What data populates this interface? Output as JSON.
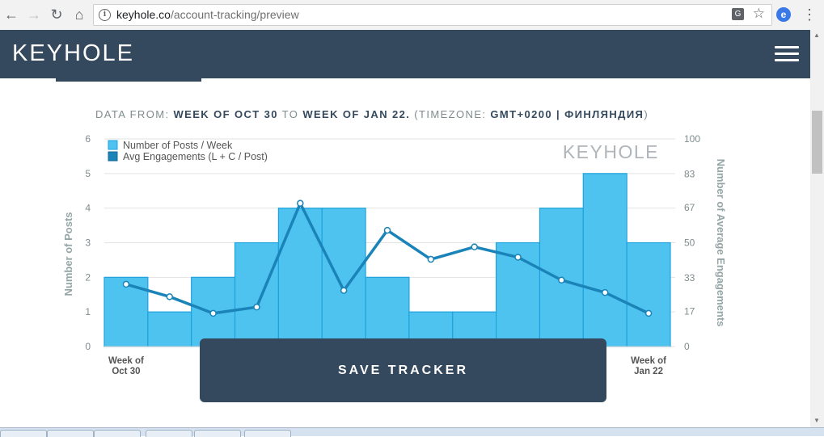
{
  "browser": {
    "url_host": "keyhole.co",
    "url_path": "/account-tracking/preview"
  },
  "header": {
    "logo_text": "KEYHOLE"
  },
  "data_range": {
    "label": "DATA FROM:",
    "from": "WEEK OF OCT 30",
    "to_word": "TO",
    "to": "WEEK OF JAN 22.",
    "tz_open": "(TIMEZONE:",
    "timezone": "GMT+0200 | ФИНЛЯНДИЯ",
    "tz_close": ")"
  },
  "chart_data": {
    "type": "bar",
    "watermark": "KEYHOLE",
    "categories": [
      "Week of Oct 30",
      "",
      "",
      "",
      "",
      "",
      "",
      "",
      "",
      "",
      "",
      "",
      "Week of Jan 22"
    ],
    "series": [
      {
        "name": "Number of Posts / Week",
        "type": "bar",
        "axis": "left",
        "color": "#4fc3f0",
        "values": [
          2,
          1,
          2,
          3,
          4,
          4,
          2,
          1,
          1,
          3,
          4,
          5,
          3
        ]
      },
      {
        "name": "Avg Engagements (L + C / Post)",
        "type": "line",
        "axis": "right",
        "color": "#1a84b8",
        "values": [
          30,
          24,
          16,
          19,
          69,
          27,
          56,
          42,
          48,
          43,
          32,
          26,
          16
        ]
      }
    ],
    "ylabel": "Number of Posts",
    "y2label": "Number of Average Engagements",
    "ylim": [
      0,
      6
    ],
    "yticks": [
      "0",
      "1",
      "2",
      "3",
      "4",
      "5",
      "6"
    ],
    "y2lim": [
      0,
      100
    ],
    "y2ticks": [
      "0",
      "17",
      "33",
      "50",
      "67",
      "83",
      "100"
    ],
    "grid": true,
    "legend": "top-left"
  },
  "actions": {
    "save_label": "SAVE TRACKER"
  }
}
